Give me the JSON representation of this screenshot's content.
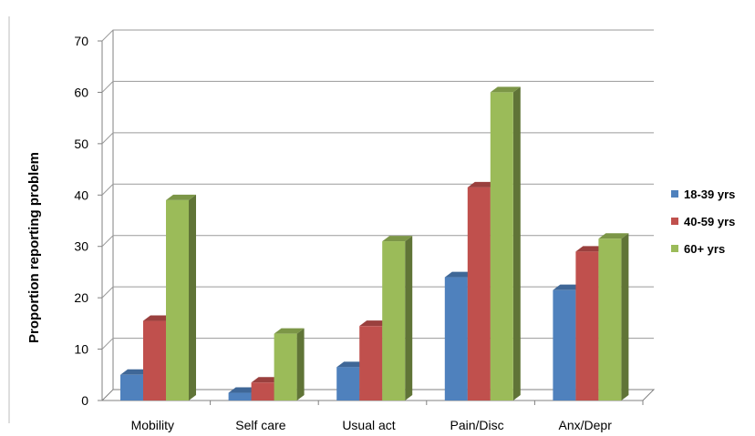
{
  "chart_data": {
    "type": "bar",
    "style": "3d-clustered-column",
    "categories": [
      "Mobility",
      "Self care",
      "Usual act",
      "Pain/Disc",
      "Anx/Depr"
    ],
    "series": [
      {
        "name": "18-39 yrs",
        "color": "#4f81bd",
        "values": [
          5,
          1.5,
          6.5,
          24,
          21.5
        ]
      },
      {
        "name": "40-59 yrs",
        "color": "#c0504d",
        "values": [
          15.5,
          3.5,
          14.5,
          41.5,
          29
        ]
      },
      {
        "name": "60+ yrs",
        "color": "#9bbb59",
        "values": [
          39,
          13,
          31,
          60,
          31.5
        ]
      }
    ],
    "title": "",
    "xlabel": "",
    "ylabel": "Proportion reporting problem",
    "ylim": [
      0,
      70
    ],
    "yticks": [
      0,
      10,
      20,
      30,
      40,
      50,
      60,
      70
    ],
    "grid": true,
    "legend_position": "right"
  }
}
